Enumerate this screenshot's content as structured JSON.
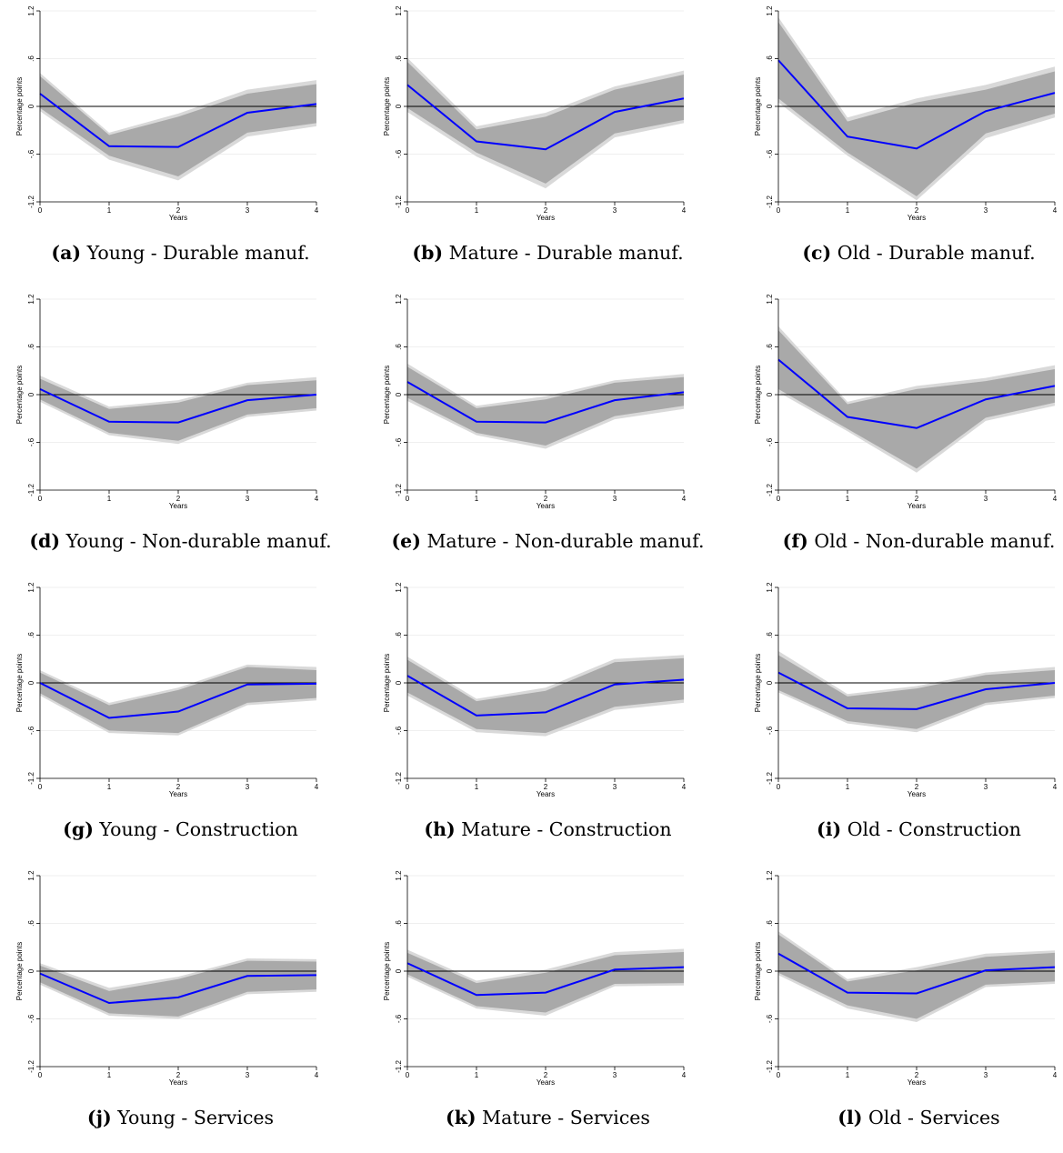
{
  "colors": {
    "line": "#0000ff",
    "band_inner": "#a9a9a9",
    "band_outer": "#d9d9d9",
    "zero_line": "#000000",
    "grid": "#eaeaea"
  },
  "chart_data": [
    {
      "type": "line",
      "label": "(a)",
      "caption": "Young - Durable manuf.",
      "xlabel": "Years",
      "ylabel": "Percentage points",
      "x": [
        0,
        1,
        2,
        3,
        4
      ],
      "y": [
        0.16,
        -0.5,
        -0.51,
        -0.08,
        0.03
      ],
      "ci_inner_low": [
        -0.02,
        -0.62,
        -0.88,
        -0.33,
        -0.21
      ],
      "ci_inner_high": [
        0.38,
        -0.36,
        -0.13,
        0.16,
        0.28
      ],
      "ci_outer_low": [
        -0.06,
        -0.67,
        -0.93,
        -0.38,
        -0.25
      ],
      "ci_outer_high": [
        0.42,
        -0.33,
        -0.09,
        0.21,
        0.33
      ],
      "xticks": [
        "0",
        "1",
        "2",
        "3",
        "4"
      ],
      "yticks": [
        "-1.2",
        "-.6",
        "0",
        ".6",
        "1.2"
      ],
      "ylim": [
        -1.2,
        1.2
      ]
    },
    {
      "type": "line",
      "label": "(b)",
      "caption": "Mature - Durable manuf.",
      "xlabel": "Years",
      "ylabel": "Percentage points",
      "x": [
        0,
        1,
        2,
        3,
        4
      ],
      "y": [
        0.27,
        -0.44,
        -0.54,
        -0.07,
        0.1
      ],
      "ci_inner_low": [
        -0.02,
        -0.58,
        -0.97,
        -0.34,
        -0.17
      ],
      "ci_inner_high": [
        0.56,
        -0.29,
        -0.13,
        0.21,
        0.4
      ],
      "ci_outer_low": [
        -0.07,
        -0.63,
        -1.03,
        -0.39,
        -0.21
      ],
      "ci_outer_high": [
        0.61,
        -0.25,
        -0.08,
        0.25,
        0.45
      ],
      "xticks": [
        "0",
        "1",
        "2",
        "3",
        "4"
      ],
      "yticks": [
        "-1.2",
        "-.6",
        "0",
        ".6",
        "1.2"
      ],
      "ylim": [
        -1.2,
        1.2
      ]
    },
    {
      "type": "line",
      "label": "(c)",
      "caption": "Old - Durable manuf.",
      "xlabel": "Years",
      "ylabel": "Percentage points",
      "x": [
        0,
        1,
        2,
        3,
        4
      ],
      "y": [
        0.58,
        -0.38,
        -0.53,
        -0.06,
        0.17
      ],
      "ci_inner_low": [
        0.1,
        -0.58,
        -1.13,
        -0.34,
        -0.09
      ],
      "ci_inner_high": [
        1.06,
        -0.19,
        0.05,
        0.21,
        0.44
      ],
      "ci_outer_low": [
        0.05,
        -0.62,
        -1.18,
        -0.4,
        -0.14
      ],
      "ci_outer_high": [
        1.12,
        -0.14,
        0.1,
        0.27,
        0.5
      ],
      "xticks": [
        "0",
        "1",
        "2",
        "3",
        "4"
      ],
      "yticks": [
        "-1.2",
        "-.6",
        "0",
        ".6",
        "1.2"
      ],
      "ylim": [
        -1.2,
        1.2
      ]
    },
    {
      "type": "line",
      "label": "(d)",
      "caption": "Young - Non-durable manuf.",
      "xlabel": "Years",
      "ylabel": "Percentage points",
      "x": [
        0,
        1,
        2,
        3,
        4
      ],
      "y": [
        0.07,
        -0.34,
        -0.35,
        -0.07,
        0.0
      ],
      "ci_inner_low": [
        -0.06,
        -0.48,
        -0.58,
        -0.25,
        -0.17
      ],
      "ci_inner_high": [
        0.2,
        -0.18,
        -0.1,
        0.12,
        0.18
      ],
      "ci_outer_low": [
        -0.09,
        -0.51,
        -0.62,
        -0.28,
        -0.2
      ],
      "ci_outer_high": [
        0.24,
        -0.15,
        -0.07,
        0.15,
        0.22
      ],
      "xticks": [
        "0",
        "1",
        "2",
        "3",
        "4"
      ],
      "yticks": [
        "-1.2",
        "-.6",
        "0",
        ".6",
        "1.2"
      ],
      "ylim": [
        -1.2,
        1.2
      ]
    },
    {
      "type": "line",
      "label": "(e)",
      "caption": "Mature - Non-durable manuf.",
      "xlabel": "Years",
      "ylabel": "Percentage points",
      "x": [
        0,
        1,
        2,
        3,
        4
      ],
      "y": [
        0.16,
        -0.34,
        -0.35,
        -0.07,
        0.03
      ],
      "ci_inner_low": [
        -0.04,
        -0.48,
        -0.64,
        -0.27,
        -0.14
      ],
      "ci_inner_high": [
        0.35,
        -0.17,
        -0.06,
        0.15,
        0.22
      ],
      "ci_outer_low": [
        -0.08,
        -0.51,
        -0.68,
        -0.31,
        -0.18
      ],
      "ci_outer_high": [
        0.39,
        -0.14,
        -0.02,
        0.18,
        0.26
      ],
      "xticks": [
        "0",
        "1",
        "2",
        "3",
        "4"
      ],
      "yticks": [
        "-1.2",
        "-.6",
        "0",
        ".6",
        "1.2"
      ],
      "ylim": [
        -1.2,
        1.2
      ]
    },
    {
      "type": "line",
      "label": "(f)",
      "caption": "Old - Non-durable manuf.",
      "xlabel": "Years",
      "ylabel": "Percentage points",
      "x": [
        0,
        1,
        2,
        3,
        4
      ],
      "y": [
        0.44,
        -0.28,
        -0.42,
        -0.06,
        0.11
      ],
      "ci_inner_low": [
        0.07,
        -0.43,
        -0.93,
        -0.29,
        -0.1
      ],
      "ci_inner_high": [
        0.81,
        -0.12,
        0.07,
        0.17,
        0.32
      ],
      "ci_outer_low": [
        0.03,
        -0.46,
        -0.98,
        -0.33,
        -0.14
      ],
      "ci_outer_high": [
        0.86,
        -0.09,
        0.11,
        0.21,
        0.37
      ],
      "xticks": [
        "0",
        "1",
        "2",
        "3",
        "4"
      ],
      "yticks": [
        "-1.2",
        "-.6",
        "0",
        ".6",
        "1.2"
      ],
      "ylim": [
        -1.2,
        1.2
      ]
    },
    {
      "type": "line",
      "label": "(g)",
      "caption": "Young - Construction",
      "xlabel": "Years",
      "ylabel": "Percentage points",
      "x": [
        0,
        1,
        2,
        3,
        4
      ],
      "y": [
        0.0,
        -0.44,
        -0.36,
        -0.02,
        -0.01
      ],
      "ci_inner_low": [
        -0.13,
        -0.6,
        -0.63,
        -0.25,
        -0.19
      ],
      "ci_inner_high": [
        0.13,
        -0.28,
        -0.09,
        0.2,
        0.16
      ],
      "ci_outer_low": [
        -0.16,
        -0.63,
        -0.66,
        -0.28,
        -0.22
      ],
      "ci_outer_high": [
        0.16,
        -0.25,
        -0.06,
        0.23,
        0.2
      ],
      "xticks": [
        "0",
        "1",
        "2",
        "3",
        "4"
      ],
      "yticks": [
        "-1.2",
        "-.6",
        "0",
        ".6",
        "1.2"
      ],
      "ylim": [
        -1.2,
        1.2
      ]
    },
    {
      "type": "line",
      "label": "(h)",
      "caption": "Mature - Construction",
      "xlabel": "Years",
      "ylabel": "Percentage points",
      "x": [
        0,
        1,
        2,
        3,
        4
      ],
      "y": [
        0.09,
        -0.41,
        -0.37,
        -0.02,
        0.04
      ],
      "ci_inner_low": [
        -0.12,
        -0.58,
        -0.63,
        -0.3,
        -0.21
      ],
      "ci_inner_high": [
        0.29,
        -0.23,
        -0.1,
        0.26,
        0.31
      ],
      "ci_outer_low": [
        -0.16,
        -0.62,
        -0.67,
        -0.34,
        -0.25
      ],
      "ci_outer_high": [
        0.33,
        -0.2,
        -0.06,
        0.3,
        0.35
      ],
      "xticks": [
        "0",
        "1",
        "2",
        "3",
        "4"
      ],
      "yticks": [
        "-1.2",
        "-.6",
        "0",
        ".6",
        "1.2"
      ],
      "ylim": [
        -1.2,
        1.2
      ]
    },
    {
      "type": "line",
      "label": "(i)",
      "caption": "Old - Construction",
      "xlabel": "Years",
      "ylabel": "Percentage points",
      "x": [
        0,
        1,
        2,
        3,
        4
      ],
      "y": [
        0.13,
        -0.32,
        -0.33,
        -0.08,
        0.0
      ],
      "ci_inner_low": [
        -0.09,
        -0.48,
        -0.58,
        -0.25,
        -0.16
      ],
      "ci_inner_high": [
        0.35,
        -0.17,
        -0.07,
        0.1,
        0.16
      ],
      "ci_outer_low": [
        -0.12,
        -0.51,
        -0.62,
        -0.28,
        -0.19
      ],
      "ci_outer_high": [
        0.4,
        -0.14,
        -0.04,
        0.13,
        0.2
      ],
      "xticks": [
        "0",
        "1",
        "2",
        "3",
        "4"
      ],
      "yticks": [
        "-1.2",
        "-.6",
        "0",
        ".6",
        "1.2"
      ],
      "ylim": [
        -1.2,
        1.2
      ]
    },
    {
      "type": "line",
      "label": "(j)",
      "caption": "Young - Services",
      "xlabel": "Years",
      "ylabel": "Percentage points",
      "x": [
        0,
        1,
        2,
        3,
        4
      ],
      "y": [
        -0.03,
        -0.4,
        -0.33,
        -0.06,
        -0.05
      ],
      "ci_inner_low": [
        -0.14,
        -0.53,
        -0.57,
        -0.26,
        -0.23
      ],
      "ci_inner_high": [
        0.07,
        -0.25,
        -0.1,
        0.13,
        0.12
      ],
      "ci_outer_low": [
        -0.17,
        -0.56,
        -0.6,
        -0.29,
        -0.26
      ],
      "ci_outer_high": [
        0.1,
        -0.21,
        -0.07,
        0.16,
        0.15
      ],
      "xticks": [
        "0",
        "1",
        "2",
        "3",
        "4"
      ],
      "yticks": [
        "-1.2",
        "-.6",
        "0",
        ".6",
        "1.2"
      ],
      "ylim": [
        -1.2,
        1.2
      ]
    },
    {
      "type": "line",
      "label": "(k)",
      "caption": "Mature - Services",
      "xlabel": "Years",
      "ylabel": "Percentage points",
      "x": [
        0,
        1,
        2,
        3,
        4
      ],
      "y": [
        0.1,
        -0.3,
        -0.27,
        0.02,
        0.05
      ],
      "ci_inner_low": [
        -0.04,
        -0.44,
        -0.52,
        -0.16,
        -0.15
      ],
      "ci_inner_high": [
        0.23,
        -0.15,
        -0.02,
        0.2,
        0.24
      ],
      "ci_outer_low": [
        -0.07,
        -0.47,
        -0.56,
        -0.19,
        -0.18
      ],
      "ci_outer_high": [
        0.27,
        -0.12,
        0.02,
        0.24,
        0.28
      ],
      "xticks": [
        "0",
        "1",
        "2",
        "3",
        "4"
      ],
      "yticks": [
        "-1.2",
        "-.6",
        "0",
        ".6",
        "1.2"
      ],
      "ylim": [
        -1.2,
        1.2
      ]
    },
    {
      "type": "line",
      "label": "(l)",
      "caption": "Old - Services",
      "xlabel": "Years",
      "ylabel": "Percentage points",
      "x": [
        0,
        1,
        2,
        3,
        4
      ],
      "y": [
        0.22,
        -0.27,
        -0.28,
        0.01,
        0.05
      ],
      "ci_inner_low": [
        -0.02,
        -0.43,
        -0.6,
        -0.17,
        -0.13
      ],
      "ci_inner_high": [
        0.46,
        -0.13,
        0.01,
        0.18,
        0.23
      ],
      "ci_outer_low": [
        -0.05,
        -0.47,
        -0.64,
        -0.2,
        -0.16
      ],
      "ci_outer_high": [
        0.5,
        -0.1,
        0.05,
        0.22,
        0.26
      ],
      "xticks": [
        "0",
        "1",
        "2",
        "3",
        "4"
      ],
      "yticks": [
        "-1.2",
        "-.6",
        "0",
        ".6",
        "1.2"
      ],
      "ylim": [
        -1.2,
        1.2
      ]
    }
  ]
}
